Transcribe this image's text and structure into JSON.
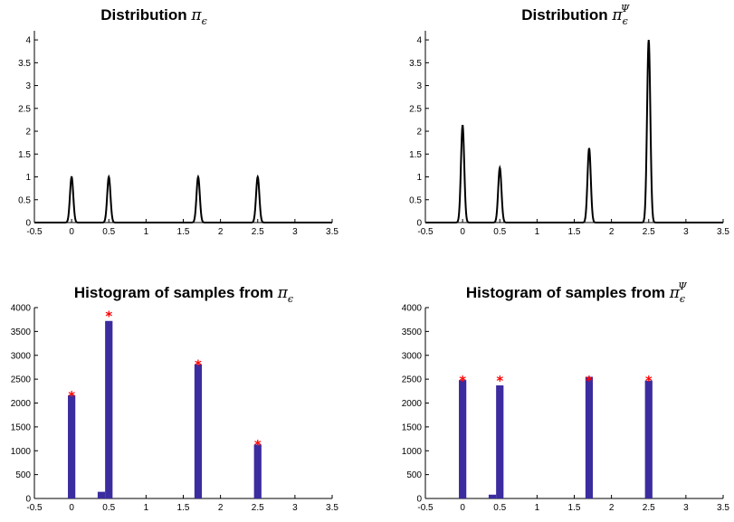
{
  "chart_data": [
    {
      "type": "line",
      "title": "Distribution",
      "title_symbol": "π",
      "title_subscript": "ϵ",
      "title_superscript": "",
      "xlim": [
        -0.5,
        3.5
      ],
      "ylim": [
        0,
        4.2
      ],
      "xticks": [
        "-0.5",
        "0",
        "0.5",
        "1",
        "1.5",
        "2",
        "2.5",
        "3",
        "3.5"
      ],
      "yticks": [
        "0",
        "0.5",
        "1",
        "1.5",
        "2",
        "2.5",
        "3",
        "3.5",
        "4"
      ],
      "line_color": "#000000",
      "peaks": [
        {
          "center": 0.0,
          "height": 1.0
        },
        {
          "center": 0.5,
          "height": 1.0
        },
        {
          "center": 1.7,
          "height": 1.0
        },
        {
          "center": 2.5,
          "height": 1.0
        }
      ]
    },
    {
      "type": "line",
      "title": "Distribution",
      "title_symbol": "π",
      "title_subscript": "ϵ",
      "title_superscript": "Ψ",
      "xlim": [
        -0.5,
        3.5
      ],
      "ylim": [
        0,
        4.2
      ],
      "xticks": [
        "-0.5",
        "0",
        "0.5",
        "1",
        "1.5",
        "2",
        "2.5",
        "3",
        "3.5"
      ],
      "yticks": [
        "0",
        "0.5",
        "1",
        "1.5",
        "2",
        "2.5",
        "3",
        "3.5",
        "4"
      ],
      "line_color": "#000000",
      "peaks": [
        {
          "center": 0.0,
          "height": 2.13
        },
        {
          "center": 0.5,
          "height": 1.2
        },
        {
          "center": 1.7,
          "height": 1.63
        },
        {
          "center": 2.5,
          "height": 4.0
        }
      ]
    },
    {
      "type": "bar",
      "title": "Histogram of samples from",
      "title_symbol": "π",
      "title_subscript": "ϵ",
      "title_superscript": "",
      "xlim": [
        -0.5,
        3.5
      ],
      "ylim": [
        0,
        4000
      ],
      "xticks": [
        "-0.5",
        "0",
        "0.5",
        "1",
        "1.5",
        "2",
        "2.5",
        "3",
        "3.5"
      ],
      "yticks": [
        "0",
        "500",
        "1000",
        "1500",
        "2000",
        "2500",
        "3000",
        "3500",
        "4000"
      ],
      "bar_color": "#3b2ca0",
      "marker_color": "#ff0000",
      "bars": [
        {
          "x": 0.0,
          "value": 2160
        },
        {
          "x": 0.4,
          "value": 140
        },
        {
          "x": 0.5,
          "value": 3720
        },
        {
          "x": 1.7,
          "value": 2810
        },
        {
          "x": 2.5,
          "value": 1130
        }
      ],
      "markers": [
        {
          "x": 0.0,
          "value": 2180
        },
        {
          "x": 0.5,
          "value": 3860
        },
        {
          "x": 1.7,
          "value": 2830
        },
        {
          "x": 2.5,
          "value": 1160
        }
      ]
    },
    {
      "type": "bar",
      "title": "Histogram of samples from",
      "title_symbol": "π",
      "title_subscript": "ϵ",
      "title_superscript": "Ψ",
      "xlim": [
        -0.5,
        3.5
      ],
      "ylim": [
        0,
        4000
      ],
      "xticks": [
        "-0.5",
        "0",
        "0.5",
        "1",
        "1.5",
        "2",
        "2.5",
        "3",
        "3.5"
      ],
      "yticks": [
        "0",
        "500",
        "1000",
        "1500",
        "2000",
        "2500",
        "3000",
        "3500",
        "4000"
      ],
      "bar_color": "#3b2ca0",
      "marker_color": "#ff0000",
      "bars": [
        {
          "x": 0.0,
          "value": 2480
        },
        {
          "x": 0.4,
          "value": 80
        },
        {
          "x": 0.5,
          "value": 2370
        },
        {
          "x": 1.7,
          "value": 2550
        },
        {
          "x": 2.5,
          "value": 2470
        }
      ],
      "markers": [
        {
          "x": 0.0,
          "value": 2500
        },
        {
          "x": 0.5,
          "value": 2500
        },
        {
          "x": 1.7,
          "value": 2500
        },
        {
          "x": 2.5,
          "value": 2500
        }
      ]
    }
  ]
}
